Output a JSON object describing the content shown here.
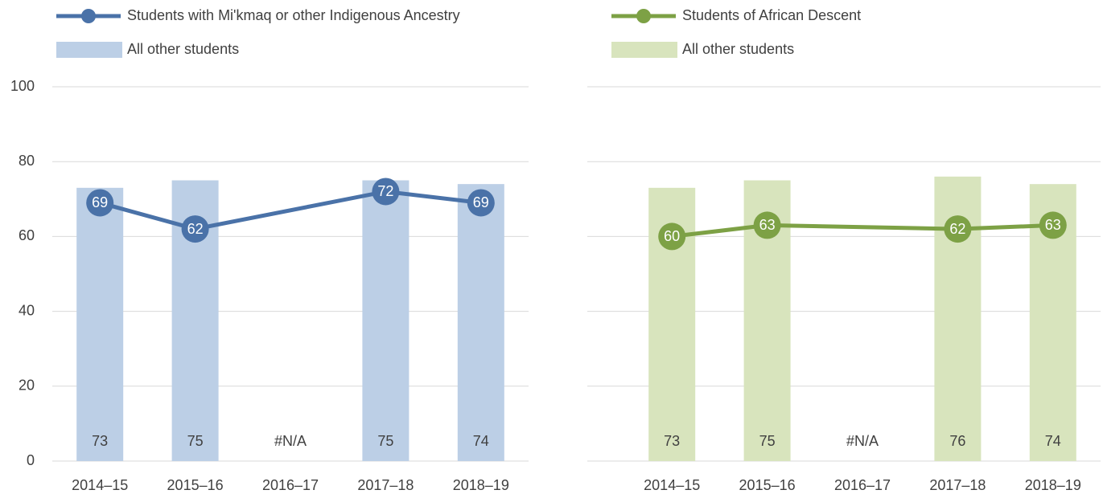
{
  "chart_data": [
    {
      "type": "bar_line",
      "categories": [
        "2014–15",
        "2015–16",
        "2016–17",
        "2017–18",
        "2018–19"
      ],
      "series": [
        {
          "name": "Students with Mi'kmaq or other Indigenous Ancestry",
          "type": "line",
          "color": "#4a72a8",
          "values": [
            69,
            62,
            null,
            72,
            69
          ]
        },
        {
          "name": "All other students",
          "type": "bar",
          "color": "#bccfe6",
          "values": [
            73,
            75,
            null,
            75,
            74
          ],
          "value_labels": [
            "73",
            "75",
            "#N/A",
            "75",
            "74"
          ]
        }
      ],
      "ylim": [
        0,
        100
      ],
      "yticks": [
        0,
        20,
        40,
        60,
        80,
        100
      ],
      "ytick_labels": true,
      "grid": true,
      "connect_nulls": true
    },
    {
      "type": "bar_line",
      "categories": [
        "2014–15",
        "2015–16",
        "2016–17",
        "2017–18",
        "2018–19"
      ],
      "series": [
        {
          "name": "Students of African Descent",
          "type": "line",
          "color": "#7da145",
          "values": [
            60,
            63,
            null,
            62,
            63
          ]
        },
        {
          "name": "All other students",
          "type": "bar",
          "color": "#d8e4bd",
          "values": [
            73,
            75,
            null,
            76,
            74
          ],
          "value_labels": [
            "73",
            "75",
            "#N/A",
            "76",
            "74"
          ]
        }
      ],
      "ylim": [
        0,
        100
      ],
      "yticks": [
        0,
        20,
        40,
        60,
        80,
        100
      ],
      "ytick_labels": false,
      "grid": true,
      "connect_nulls": true
    }
  ]
}
